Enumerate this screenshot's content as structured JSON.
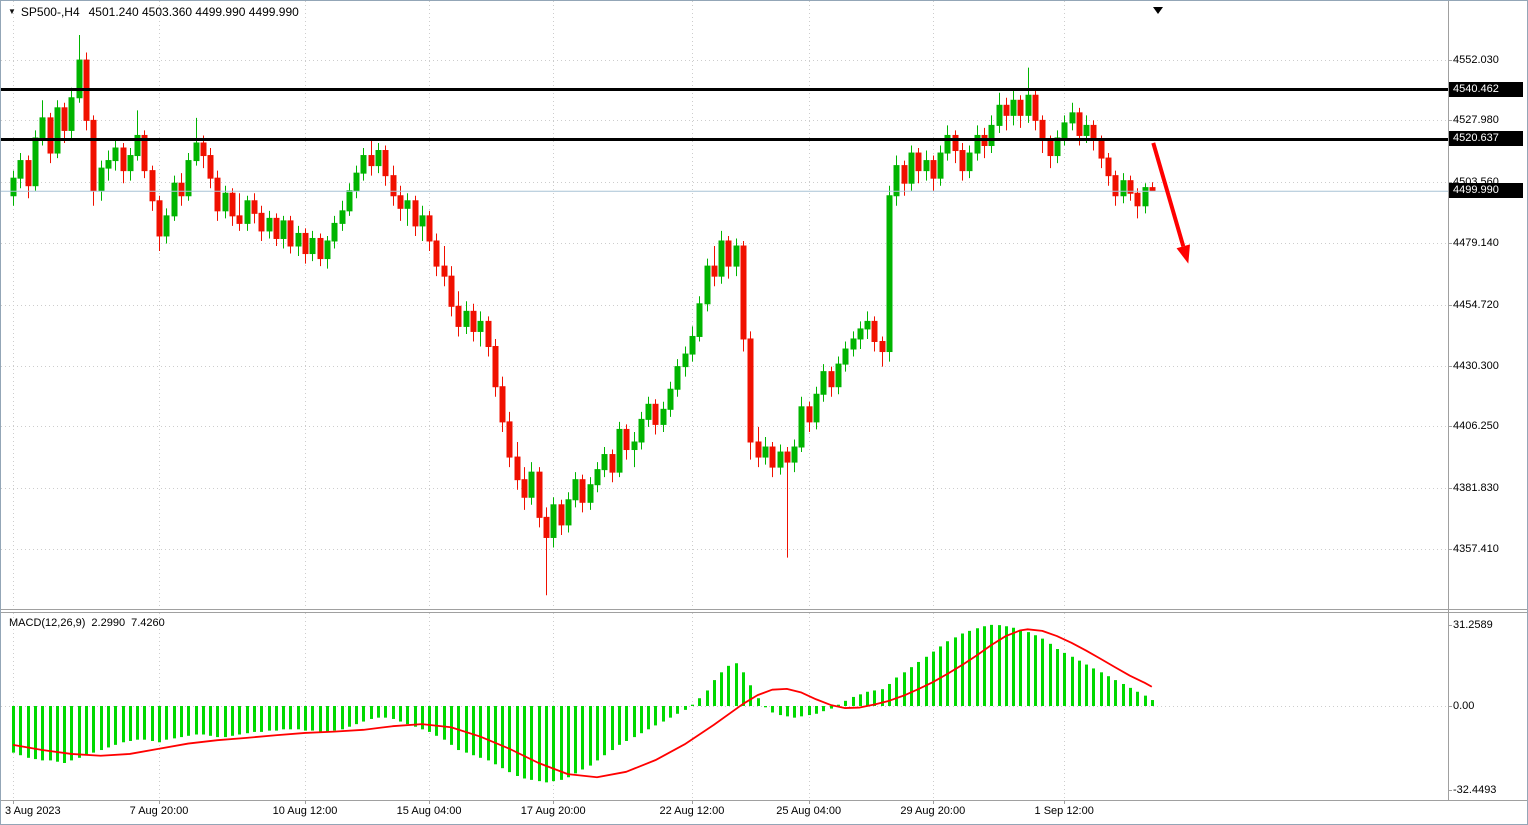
{
  "header": {
    "symbol_period": "SP500-,H4",
    "ohlc_values": "4501.240 4503.360 4499.990 4499.990",
    "title_text": "SP500-,H4  4501.240 4503.360 4499.990 4499.990"
  },
  "macd_header": {
    "name": "MACD(12,26,9)",
    "value_main": "2.2990",
    "value_signal": "7.4260"
  },
  "colors": {
    "candle_up": "#00b400",
    "candle_down": "#f01000",
    "macd_histogram": "#00d900",
    "macd_signal": "#ff0000",
    "price_line": "#000000",
    "current_price_line": "#a8c4d6",
    "grid": "#cdcdcd",
    "axis_border": "#a0a0a0",
    "badge_bg": "#000000",
    "badge_text": "#ffffff",
    "arrow": "#ff0000"
  },
  "chart_data": {
    "type": "candlestick",
    "title": "SP500-,H4",
    "symbol": "SP500-",
    "timeframe": "H4",
    "last_bar": {
      "open": 4501.24,
      "high": 4503.36,
      "low": 4499.99,
      "close": 4499.99
    },
    "visible_price_range": [
      4335,
      4575
    ],
    "grid": "dotted",
    "price_axis_labels": [
      "4552.030",
      "4527.980",
      "4503.560",
      "4479.140",
      "4454.720",
      "4430.300",
      "4406.250",
      "4381.830",
      "4357.410"
    ],
    "price_lines": [
      {
        "label": "4540.462",
        "price": 4540.462
      },
      {
        "label": "4520.637",
        "price": 4520.637
      }
    ],
    "current_price": {
      "label": "4499.990",
      "price": 4499.99
    },
    "time_axis": [
      {
        "label": "3 Aug 2023",
        "bar": 0
      },
      {
        "label": "7 Aug 20:00",
        "bar": 20
      },
      {
        "label": "10 Aug 12:00",
        "bar": 40
      },
      {
        "label": "15 Aug 04:00",
        "bar": 57
      },
      {
        "label": "17 Aug 20:00",
        "bar": 74
      },
      {
        "label": "22 Aug 12:00",
        "bar": 93
      },
      {
        "label": "25 Aug 04:00",
        "bar": 109
      },
      {
        "label": "29 Aug 20:00",
        "bar": 126
      },
      {
        "label": "1 Sep 12:00",
        "bar": 144
      }
    ],
    "candles_ohlc": [
      [
        4498,
        4508,
        4494,
        4505
      ],
      [
        4505,
        4515,
        4501,
        4512
      ],
      [
        4512,
        4514,
        4497,
        4502
      ],
      [
        4502,
        4524,
        4500,
        4521
      ],
      [
        4521,
        4536,
        4518,
        4529
      ],
      [
        4529,
        4531,
        4511,
        4515
      ],
      [
        4515,
        4536,
        4513,
        4533
      ],
      [
        4533,
        4535,
        4519,
        4524
      ],
      [
        4524,
        4541,
        4521,
        4537
      ],
      [
        4537,
        4562,
        4535,
        4552
      ],
      [
        4552,
        4555,
        4524,
        4528
      ],
      [
        4528,
        4530,
        4494,
        4500
      ],
      [
        4500,
        4512,
        4496,
        4509
      ],
      [
        4509,
        4516,
        4504,
        4512
      ],
      [
        4512,
        4520,
        4508,
        4517
      ],
      [
        4517,
        4519,
        4503,
        4508
      ],
      [
        4508,
        4517,
        4504,
        4514
      ],
      [
        4514,
        4532,
        4512,
        4522
      ],
      [
        4522,
        4524,
        4505,
        4508
      ],
      [
        4508,
        4510,
        4492,
        4496
      ],
      [
        4496,
        4498,
        4476,
        4482
      ],
      [
        4482,
        4493,
        4479,
        4490
      ],
      [
        4490,
        4506,
        4488,
        4503
      ],
      [
        4503,
        4507,
        4494,
        4498
      ],
      [
        4498,
        4515,
        4496,
        4512
      ],
      [
        4512,
        4529,
        4510,
        4519
      ],
      [
        4519,
        4522,
        4509,
        4514
      ],
      [
        4514,
        4517,
        4501,
        4505
      ],
      [
        4505,
        4508,
        4488,
        4492
      ],
      [
        4492,
        4502,
        4489,
        4499
      ],
      [
        4499,
        4501,
        4486,
        4490
      ],
      [
        4490,
        4499,
        4484,
        4487
      ],
      [
        4487,
        4498,
        4484,
        4496
      ],
      [
        4496,
        4499,
        4487,
        4491
      ],
      [
        4491,
        4494,
        4480,
        4484
      ],
      [
        4484,
        4492,
        4481,
        4489
      ],
      [
        4489,
        4491,
        4478,
        4481
      ],
      [
        4481,
        4490,
        4477,
        4488
      ],
      [
        4488,
        4490,
        4475,
        4478
      ],
      [
        4478,
        4486,
        4474,
        4483
      ],
      [
        4483,
        4485,
        4471,
        4475
      ],
      [
        4475,
        4484,
        4472,
        4481
      ],
      [
        4481,
        4483,
        4470,
        4473
      ],
      [
        4473,
        4482,
        4469,
        4480
      ],
      [
        4480,
        4490,
        4477,
        4487
      ],
      [
        4487,
        4496,
        4484,
        4492
      ],
      [
        4492,
        4503,
        4490,
        4500
      ],
      [
        4500,
        4510,
        4497,
        4507
      ],
      [
        4507,
        4517,
        4504,
        4514
      ],
      [
        4514,
        4521,
        4506,
        4510
      ],
      [
        4510,
        4519,
        4507,
        4516
      ],
      [
        4516,
        4518,
        4502,
        4506
      ],
      [
        4506,
        4510,
        4494,
        4498
      ],
      [
        4498,
        4502,
        4488,
        4493
      ],
      [
        4493,
        4499,
        4486,
        4496
      ],
      [
        4496,
        4498,
        4482,
        4486
      ],
      [
        4486,
        4494,
        4480,
        4490
      ],
      [
        4490,
        4492,
        4476,
        4480
      ],
      [
        4480,
        4483,
        4466,
        4470
      ],
      [
        4470,
        4478,
        4462,
        4466
      ],
      [
        4466,
        4470,
        4450,
        4454
      ],
      [
        4454,
        4460,
        4442,
        4446
      ],
      [
        4446,
        4456,
        4443,
        4452
      ],
      [
        4452,
        4455,
        4440,
        4444
      ],
      [
        4444,
        4452,
        4438,
        4448
      ],
      [
        4448,
        4450,
        4434,
        4438
      ],
      [
        4438,
        4441,
        4418,
        4422
      ],
      [
        4422,
        4426,
        4404,
        4408
      ],
      [
        4408,
        4412,
        4390,
        4394
      ],
      [
        4394,
        4400,
        4381,
        4385
      ],
      [
        4385,
        4390,
        4373,
        4378
      ],
      [
        4378,
        4392,
        4375,
        4388
      ],
      [
        4388,
        4390,
        4366,
        4370
      ],
      [
        4370,
        4374,
        4339,
        4362
      ],
      [
        4362,
        4378,
        4358,
        4375
      ],
      [
        4375,
        4377,
        4363,
        4367
      ],
      [
        4367,
        4380,
        4364,
        4377
      ],
      [
        4377,
        4388,
        4374,
        4385
      ],
      [
        4385,
        4387,
        4372,
        4376
      ],
      [
        4376,
        4386,
        4373,
        4383
      ],
      [
        4383,
        4392,
        4380,
        4389
      ],
      [
        4389,
        4398,
        4386,
        4395
      ],
      [
        4395,
        4397,
        4384,
        4388
      ],
      [
        4388,
        4408,
        4386,
        4405
      ],
      [
        4405,
        4407,
        4393,
        4397
      ],
      [
        4397,
        4404,
        4390,
        4400
      ],
      [
        4400,
        4412,
        4397,
        4409
      ],
      [
        4409,
        4418,
        4406,
        4415
      ],
      [
        4415,
        4417,
        4403,
        4407
      ],
      [
        4407,
        4416,
        4404,
        4413
      ],
      [
        4413,
        4424,
        4410,
        4421
      ],
      [
        4421,
        4433,
        4418,
        4430
      ],
      [
        4430,
        4438,
        4426,
        4435
      ],
      [
        4435,
        4446,
        4432,
        4442
      ],
      [
        4442,
        4458,
        4440,
        4455
      ],
      [
        4455,
        4473,
        4452,
        4470
      ],
      [
        4470,
        4478,
        4462,
        4466
      ],
      [
        4466,
        4484,
        4463,
        4480
      ],
      [
        4480,
        4482,
        4465,
        4470
      ],
      [
        4470,
        4481,
        4466,
        4478
      ],
      [
        4478,
        4480,
        4436,
        4441
      ],
      [
        4441,
        4444,
        4393,
        4400
      ],
      [
        4400,
        4406,
        4390,
        4394
      ],
      [
        4394,
        4402,
        4391,
        4398
      ],
      [
        4398,
        4400,
        4386,
        4390
      ],
      [
        4390,
        4399,
        4387,
        4396
      ],
      [
        4396,
        4398,
        4354,
        4392
      ],
      [
        4392,
        4401,
        4388,
        4398
      ],
      [
        4398,
        4418,
        4396,
        4414
      ],
      [
        4414,
        4416,
        4404,
        4408
      ],
      [
        4408,
        4422,
        4405,
        4419
      ],
      [
        4419,
        4431,
        4416,
        4428
      ],
      [
        4428,
        4430,
        4418,
        4422
      ],
      [
        4422,
        4434,
        4419,
        4431
      ],
      [
        4431,
        4440,
        4428,
        4437
      ],
      [
        4437,
        4444,
        4434,
        4441
      ],
      [
        4441,
        4448,
        4437,
        4445
      ],
      [
        4445,
        4452,
        4441,
        4448
      ],
      [
        4448,
        4450,
        4436,
        4440
      ],
      [
        4440,
        4442,
        4430,
        4436
      ],
      [
        4436,
        4502,
        4432,
        4498
      ],
      [
        4498,
        4514,
        4494,
        4510
      ],
      [
        4510,
        4512,
        4498,
        4503
      ],
      [
        4503,
        4518,
        4500,
        4515
      ],
      [
        4515,
        4517,
        4503,
        4508
      ],
      [
        4508,
        4516,
        4504,
        4512
      ],
      [
        4512,
        4514,
        4500,
        4505
      ],
      [
        4505,
        4518,
        4502,
        4515
      ],
      [
        4515,
        4526,
        4512,
        4522
      ],
      [
        4522,
        4524,
        4511,
        4516
      ],
      [
        4516,
        4519,
        4504,
        4508
      ],
      [
        4508,
        4518,
        4505,
        4515
      ],
      [
        4515,
        4526,
        4512,
        4522
      ],
      [
        4522,
        4525,
        4513,
        4518
      ],
      [
        4518,
        4530,
        4515,
        4526
      ],
      [
        4526,
        4539,
        4523,
        4534
      ],
      [
        4534,
        4537,
        4524,
        4530
      ],
      [
        4530,
        4540,
        4526,
        4536
      ],
      [
        4536,
        4538,
        4525,
        4530
      ],
      [
        4530,
        4549,
        4527,
        4538
      ],
      [
        4538,
        4540,
        4524,
        4528
      ],
      [
        4528,
        4530,
        4515,
        4520
      ],
      [
        4520,
        4522,
        4509,
        4514
      ],
      [
        4514,
        4524,
        4511,
        4521
      ],
      [
        4521,
        4530,
        4518,
        4527
      ],
      [
        4527,
        4535,
        4524,
        4531
      ],
      [
        4531,
        4533,
        4518,
        4522
      ],
      [
        4522,
        4530,
        4519,
        4526
      ],
      [
        4526,
        4528,
        4516,
        4520
      ],
      [
        4520,
        4522,
        4509,
        4513
      ],
      [
        4513,
        4515,
        4502,
        4506
      ],
      [
        4506,
        4508,
        4494,
        4498
      ],
      [
        4498,
        4507,
        4495,
        4504
      ],
      [
        4504,
        4506,
        4496,
        4499
      ],
      [
        4499,
        4501,
        4489,
        4494
      ],
      [
        4494,
        4503,
        4491,
        4501.24
      ],
      [
        4501.24,
        4503.36,
        4499.99,
        4499.99
      ]
    ],
    "macd": {
      "name": "MACD(12,26,9)",
      "last_main": 2.299,
      "last_signal": 7.426,
      "axis_labels": [
        {
          "text": "31.2589",
          "v": 31.2589
        },
        {
          "text": "0.00",
          "v": 0
        },
        {
          "text": "-32.4493",
          "v": -32.4493
        }
      ],
      "histogram": [
        -18,
        -19,
        -20,
        -20.5,
        -21,
        -21,
        -21.5,
        -22,
        -21,
        -20,
        -19,
        -18,
        -17,
        -16,
        -15,
        -14,
        -13.5,
        -13,
        -13,
        -13.5,
        -14,
        -13,
        -12.5,
        -12,
        -11.5,
        -11,
        -11,
        -11.5,
        -12,
        -12,
        -11.5,
        -11,
        -10.5,
        -10,
        -10,
        -9.5,
        -9.5,
        -9,
        -9,
        -9,
        -9.5,
        -9.5,
        -10,
        -10,
        -9.5,
        -9,
        -8,
        -7,
        -6,
        -5,
        -4.5,
        -4.5,
        -5,
        -6,
        -7,
        -8,
        -9,
        -10,
        -11.5,
        -13,
        -15,
        -17,
        -18,
        -19,
        -20,
        -21,
        -22.5,
        -24,
        -25.5,
        -27,
        -28,
        -28.5,
        -29,
        -29.5,
        -29,
        -28.5,
        -27.5,
        -26,
        -24.5,
        -23,
        -21,
        -19,
        -17,
        -15,
        -13.5,
        -12,
        -10.5,
        -9,
        -7.5,
        -6,
        -4.5,
        -3,
        -1.5,
        0.5,
        3,
        6,
        10,
        13,
        15.5,
        16.5,
        13,
        8,
        3,
        -0.5,
        -2.5,
        -3.5,
        -4,
        -4.5,
        -4,
        -3.5,
        -3,
        -2,
        -1,
        0.5,
        2,
        3.5,
        4.5,
        5.5,
        6,
        6.5,
        8.5,
        11,
        13,
        15,
        17,
        19,
        21,
        23,
        25,
        26.5,
        28,
        29,
        30,
        30.8,
        31.3,
        31.2,
        30.8,
        30.2,
        29.4,
        28.5,
        27.3,
        26,
        24,
        22,
        20.5,
        19,
        17.5,
        16,
        14.5,
        13,
        11.5,
        10,
        8.5,
        7,
        5.5,
        4,
        2.3
      ],
      "signal_points": [
        [
          0,
          -15
        ],
        [
          4,
          -17
        ],
        [
          8,
          -18.5
        ],
        [
          12,
          -19.2
        ],
        [
          16,
          -18.5
        ],
        [
          20,
          -16.5
        ],
        [
          24,
          -14.5
        ],
        [
          28,
          -13.2
        ],
        [
          32,
          -12.3
        ],
        [
          36,
          -11.3
        ],
        [
          40,
          -10.4
        ],
        [
          44,
          -9.9
        ],
        [
          48,
          -9.2
        ],
        [
          52,
          -7.8
        ],
        [
          56,
          -7
        ],
        [
          60,
          -8.2
        ],
        [
          64,
          -11.8
        ],
        [
          68,
          -16.5
        ],
        [
          72,
          -22
        ],
        [
          76,
          -26.3
        ],
        [
          80,
          -27.5
        ],
        [
          84,
          -25.4
        ],
        [
          88,
          -20.9
        ],
        [
          92,
          -14.8
        ],
        [
          96,
          -7.3
        ],
        [
          100,
          0.8
        ],
        [
          102,
          4.2
        ],
        [
          104,
          6.3
        ],
        [
          106,
          6.6
        ],
        [
          108,
          5.2
        ],
        [
          110,
          2.6
        ],
        [
          112,
          0.4
        ],
        [
          114,
          -0.8
        ],
        [
          116,
          -0.6
        ],
        [
          118,
          0.6
        ],
        [
          120,
          2
        ],
        [
          122,
          4
        ],
        [
          124,
          6.5
        ],
        [
          126,
          9.2
        ],
        [
          128,
          12.4
        ],
        [
          130,
          15.8
        ],
        [
          132,
          19.5
        ],
        [
          134,
          23.5
        ],
        [
          136,
          27
        ],
        [
          138,
          29.2
        ],
        [
          139,
          29.6
        ],
        [
          141,
          29
        ],
        [
          143,
          27
        ],
        [
          145,
          24.4
        ],
        [
          147,
          21.4
        ],
        [
          149,
          18.2
        ],
        [
          151,
          14.9
        ],
        [
          153,
          11.7
        ],
        [
          155,
          9
        ],
        [
          156,
          7.426
        ]
      ]
    },
    "annotations": {
      "trend_arrow": {
        "from_bar": 156.2,
        "from_price": 4519,
        "to_bar": 161,
        "to_price": 4471,
        "direction": "down"
      }
    }
  }
}
